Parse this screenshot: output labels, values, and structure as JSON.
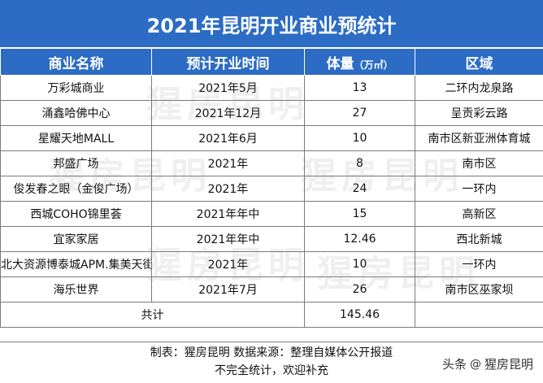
{
  "title": "2021年昆明开业商业预统计",
  "header": {
    "name": "商业名称",
    "time": "预计开业时间",
    "volume": "体量",
    "volume_unit": "（万㎡）",
    "area": "区域"
  },
  "rows": [
    {
      "name": "万彩城商业",
      "time": "2021年5月",
      "volume": "13",
      "area": "二环内龙泉路"
    },
    {
      "name": "涌鑫哈佛中心",
      "time": "2021年12月",
      "volume": "27",
      "area": "呈贡彩云路"
    },
    {
      "name": "星耀天地MALL",
      "time": "2021年6月",
      "volume": "10",
      "area": "南市区新亚洲体育城"
    },
    {
      "name": "邦盛广场",
      "time": "2021年",
      "volume": "8",
      "area": "南市区"
    },
    {
      "name": "俊发春之眼（金俊广场）",
      "time": "2021年",
      "volume": "24",
      "area": "一环内"
    },
    {
      "name": "西城COHO锦里荟",
      "time": "2021年年中",
      "volume": "15",
      "area": "高新区"
    },
    {
      "name": "宜家家居",
      "time": "2021年年中",
      "volume": "12.46",
      "area": "西北新城"
    },
    {
      "name": "北大资源博泰城APM.集美天街",
      "time": "2021年",
      "volume": "10",
      "area": "一环内"
    },
    {
      "name": "海乐世界",
      "time": "2021年7月",
      "volume": "26",
      "area": "南市区巫家坝"
    }
  ],
  "total": {
    "label": "共计",
    "volume": "145.46"
  },
  "note_line1": "制表：猩房昆明  数据来源：整理自媒体公开报道",
  "note_line2": "不完全统计，欢迎补充",
  "watermark_text": "猩房昆明",
  "brand": {
    "prefix": "头条",
    "at": "@",
    "name": "猩房昆明"
  }
}
